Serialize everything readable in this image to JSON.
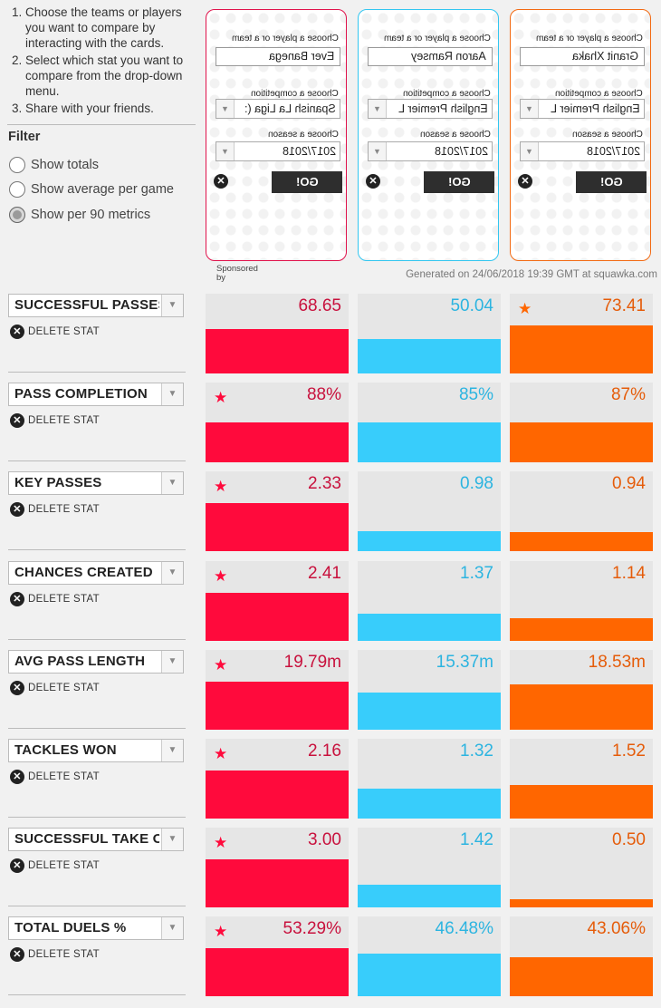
{
  "instructions": [
    "Choose the teams or players you want to compare by interacting with the cards.",
    "Select which stat you want to compare from the drop-down menu.",
    "Share with your friends."
  ],
  "filter": {
    "title": "Filter",
    "options": [
      {
        "label": "Show totals",
        "selected": false
      },
      {
        "label": "Show average per game",
        "selected": false
      },
      {
        "label": "Show per 90 metrics",
        "selected": true
      }
    ]
  },
  "cards": [
    {
      "color": "#e0134c",
      "player_label": "Choose a player or a team",
      "player": "Ever Banega",
      "competition_label": "Choose a competition",
      "competition": "Spanish La Liga (:",
      "season_label": "Choose a season",
      "season": "2017/2018",
      "go": "GO!"
    },
    {
      "color": "#33c6f0",
      "player_label": "Choose a player or a team",
      "player": "Aaron Ramsey",
      "competition_label": "Choose a competition",
      "competition": "English Premier L",
      "season_label": "Choose a season",
      "season": "2017/2018",
      "go": "GO!"
    },
    {
      "color": "#f26a13",
      "player_label": "Choose a player or a team",
      "player": "Granit Xhaka",
      "competition_label": "Choose a competition",
      "competition": "English Premier L",
      "season_label": "Choose a season",
      "season": "2017/2018",
      "go": "GO!"
    }
  ],
  "sponsored": "Sponsored by",
  "generated": "Generated on 24/06/2018 19:39 GMT at squawka.com",
  "delete_label": "DELETE STAT",
  "colors": {
    "red": "#ff0a3c",
    "blue": "#38cdfb",
    "orange": "#ff6600",
    "red_text": "#c8113d",
    "blue_text": "#2cb4e0",
    "orange_text": "#e55c0a"
  },
  "stats": [
    {
      "name": "SUCCESSFUL PASSES",
      "values": [
        "68.65",
        "50.04",
        "73.41"
      ],
      "fills": [
        0.56,
        0.43,
        0.6
      ],
      "best": 2
    },
    {
      "name": "PASS COMPLETION",
      "values": [
        "88%",
        "85%",
        "87%"
      ],
      "fills": [
        0.5,
        0.5,
        0.5
      ],
      "best": 0
    },
    {
      "name": "KEY PASSES",
      "values": [
        "2.33",
        "0.98",
        "0.94"
      ],
      "fills": [
        0.6,
        0.25,
        0.24
      ],
      "best": 0
    },
    {
      "name": "CHANCES CREATED",
      "values": [
        "2.41",
        "1.37",
        "1.14"
      ],
      "fills": [
        0.6,
        0.34,
        0.28
      ],
      "best": 0
    },
    {
      "name": "AVG PASS LENGTH",
      "values": [
        "19.79m",
        "15.37m",
        "18.53m"
      ],
      "fills": [
        0.6,
        0.47,
        0.57
      ],
      "best": 0
    },
    {
      "name": "TACKLES WON",
      "values": [
        "2.16",
        "1.32",
        "1.52"
      ],
      "fills": [
        0.6,
        0.37,
        0.42
      ],
      "best": 0
    },
    {
      "name": "SUCCESSFUL TAKE ONS",
      "values": [
        "3.00",
        "1.42",
        "0.50"
      ],
      "fills": [
        0.6,
        0.28,
        0.1
      ],
      "best": 0
    },
    {
      "name": "TOTAL DUELS %",
      "values": [
        "53.29%",
        "46.48%",
        "43.06%"
      ],
      "fills": [
        0.6,
        0.53,
        0.49
      ],
      "best": 0
    }
  ]
}
